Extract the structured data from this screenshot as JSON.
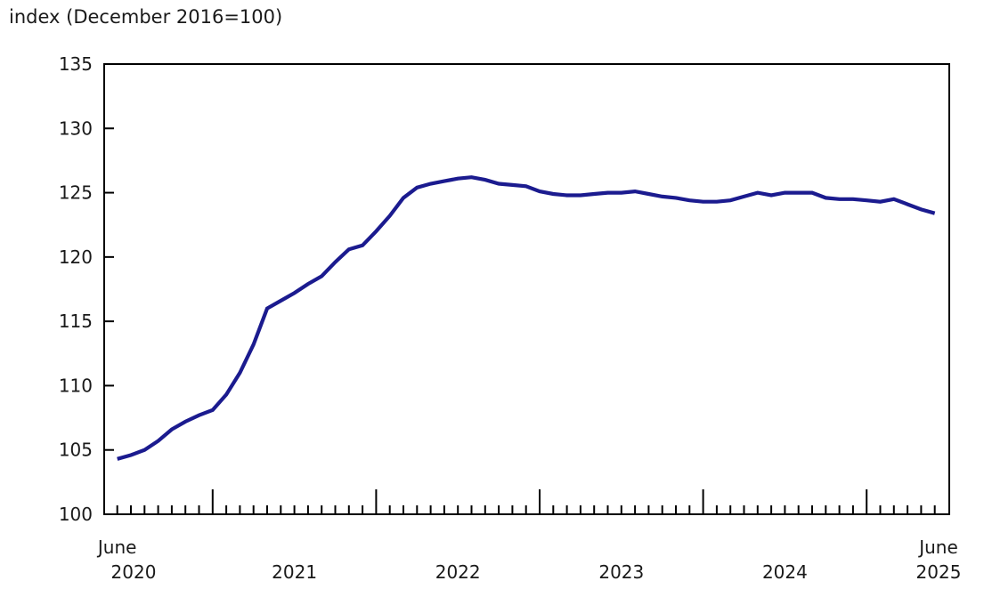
{
  "title": "index (December 2016=100)",
  "colors": {
    "line": "#1b1b8f",
    "axis": "#000000",
    "text": "#1a1a1a",
    "background": "#ffffff"
  },
  "chart_data": {
    "type": "line",
    "title": "index (December 2016=100)",
    "frequency": "monthly",
    "x_range": [
      "June 2020",
      "June 2025"
    ],
    "ylim": [
      100,
      135
    ],
    "y_ticks": [
      100,
      105,
      110,
      115,
      120,
      125,
      130,
      135
    ],
    "grid": false,
    "legend_position": "none",
    "x_axis": {
      "minor_ticks": "every month",
      "major_ticks": "every January",
      "start_label_line1": "June",
      "start_label_line2": "2020",
      "mid_year_labels": [
        "2021",
        "2022",
        "2023",
        "2024"
      ],
      "end_label_line1": "June",
      "end_label_line2": "2025"
    },
    "series": [
      {
        "name": "index (December 2016=100)",
        "color": "#1b1b8f",
        "x": [
          "2020-06",
          "2020-07",
          "2020-08",
          "2020-09",
          "2020-10",
          "2020-11",
          "2020-12",
          "2021-01",
          "2021-02",
          "2021-03",
          "2021-04",
          "2021-05",
          "2021-06",
          "2021-07",
          "2021-08",
          "2021-09",
          "2021-10",
          "2021-11",
          "2021-12",
          "2022-01",
          "2022-02",
          "2022-03",
          "2022-04",
          "2022-05",
          "2022-06",
          "2022-07",
          "2022-08",
          "2022-09",
          "2022-10",
          "2022-11",
          "2022-12",
          "2023-01",
          "2023-02",
          "2023-03",
          "2023-04",
          "2023-05",
          "2023-06",
          "2023-07",
          "2023-08",
          "2023-09",
          "2023-10",
          "2023-11",
          "2023-12",
          "2024-01",
          "2024-02",
          "2024-03",
          "2024-04",
          "2024-05",
          "2024-06",
          "2024-07",
          "2024-08",
          "2024-09",
          "2024-10",
          "2024-11",
          "2024-12",
          "2025-01",
          "2025-02",
          "2025-03",
          "2025-04",
          "2025-05",
          "2025-06"
        ],
        "values": [
          104.3,
          104.6,
          105.0,
          105.7,
          106.6,
          107.2,
          107.7,
          108.1,
          109.3,
          111.0,
          113.2,
          116.0,
          116.6,
          117.2,
          117.9,
          118.5,
          119.6,
          120.6,
          120.9,
          122.0,
          123.2,
          124.6,
          125.4,
          125.7,
          125.9,
          126.1,
          126.2,
          126.0,
          125.7,
          125.6,
          125.5,
          125.1,
          124.9,
          124.8,
          124.8,
          124.9,
          125.0,
          125.0,
          125.1,
          124.9,
          124.7,
          124.6,
          124.4,
          124.3,
          124.3,
          124.4,
          124.7,
          125.0,
          124.8,
          125.0,
          125.0,
          125.0,
          124.6,
          124.5,
          124.5,
          124.4,
          124.3,
          124.5,
          124.1,
          123.7,
          123.4
        ]
      }
    ]
  }
}
